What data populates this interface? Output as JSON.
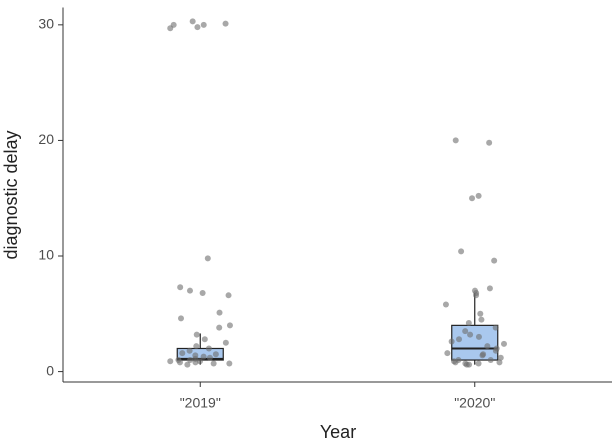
{
  "chart_data": {
    "type": "box",
    "x_label": "Year",
    "y_label": "diagnostic delay",
    "categories": [
      "\"2019\"",
      "\"2020\""
    ],
    "boxes": [
      {
        "low": 0.6,
        "q1": 1.0,
        "median": 1.1,
        "q3": 2.0,
        "high": 3.3
      },
      {
        "low": 0.6,
        "q1": 1.0,
        "median": 2.0,
        "q3": 4.0,
        "high": 6.8
      }
    ],
    "points": [
      [
        29.7,
        30.1,
        30.0,
        30.0,
        30.3,
        29.8,
        9.8,
        7.3,
        7.0,
        6.8,
        6.6,
        5.1,
        4.6,
        4.0,
        3.8,
        3.2,
        2.5,
        2.2,
        2.0,
        1.8,
        1.5,
        1.3,
        1.2,
        1.1,
        1.0,
        1.0,
        0.9,
        0.9,
        0.8,
        0.8,
        0.7,
        0.7,
        0.6,
        1.4,
        1.6,
        2.8
      ],
      [
        20.0,
        19.8,
        15.2,
        15.0,
        10.4,
        9.6,
        7.2,
        7.0,
        6.8,
        6.6,
        5.8,
        5.0,
        4.5,
        4.2,
        3.8,
        3.5,
        3.2,
        2.8,
        2.4,
        2.2,
        2.0,
        1.8,
        1.6,
        1.4,
        1.2,
        1.0,
        1.0,
        0.9,
        0.8,
        0.8,
        0.7,
        0.7,
        0.6,
        0.6,
        3.0,
        2.6,
        1.5
      ]
    ],
    "box_color": "#a9c8ee",
    "point_color": "#6e6e6e",
    "ylim": [
      -0.9,
      31.5
    ],
    "yticks": [
      0,
      10,
      20,
      30
    ]
  }
}
